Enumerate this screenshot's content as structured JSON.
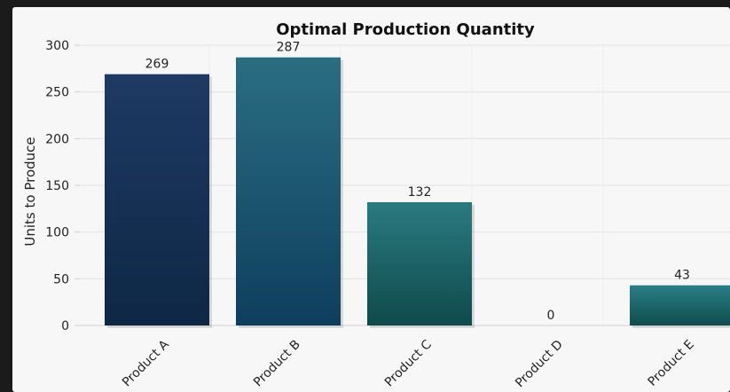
{
  "chart_data": {
    "type": "bar",
    "title": "Optimal Production Quantity",
    "xlabel": "",
    "ylabel": "Units to Produce",
    "categories": [
      "Product A",
      "Product B",
      "Product C",
      "Product D",
      "Product E"
    ],
    "values": [
      269,
      287,
      132,
      0,
      43
    ],
    "ylim": [
      0,
      300
    ],
    "yticks": [
      0,
      50,
      100,
      150,
      200,
      250,
      300
    ],
    "grid": true,
    "legend": "none",
    "colors": {
      "bar_gradients": [
        [
          "#1e3a63",
          "#0e2745"
        ],
        [
          "#2a6e82",
          "#0e3e5e"
        ],
        [
          "#2a7a80",
          "#0f4a4c"
        ],
        [
          "#2a7a80",
          "#0f4a4c"
        ],
        [
          "#2a7f86",
          "#0f4c4e"
        ]
      ],
      "background": "#f7f7f7",
      "grid": "#e3e3e3"
    }
  }
}
